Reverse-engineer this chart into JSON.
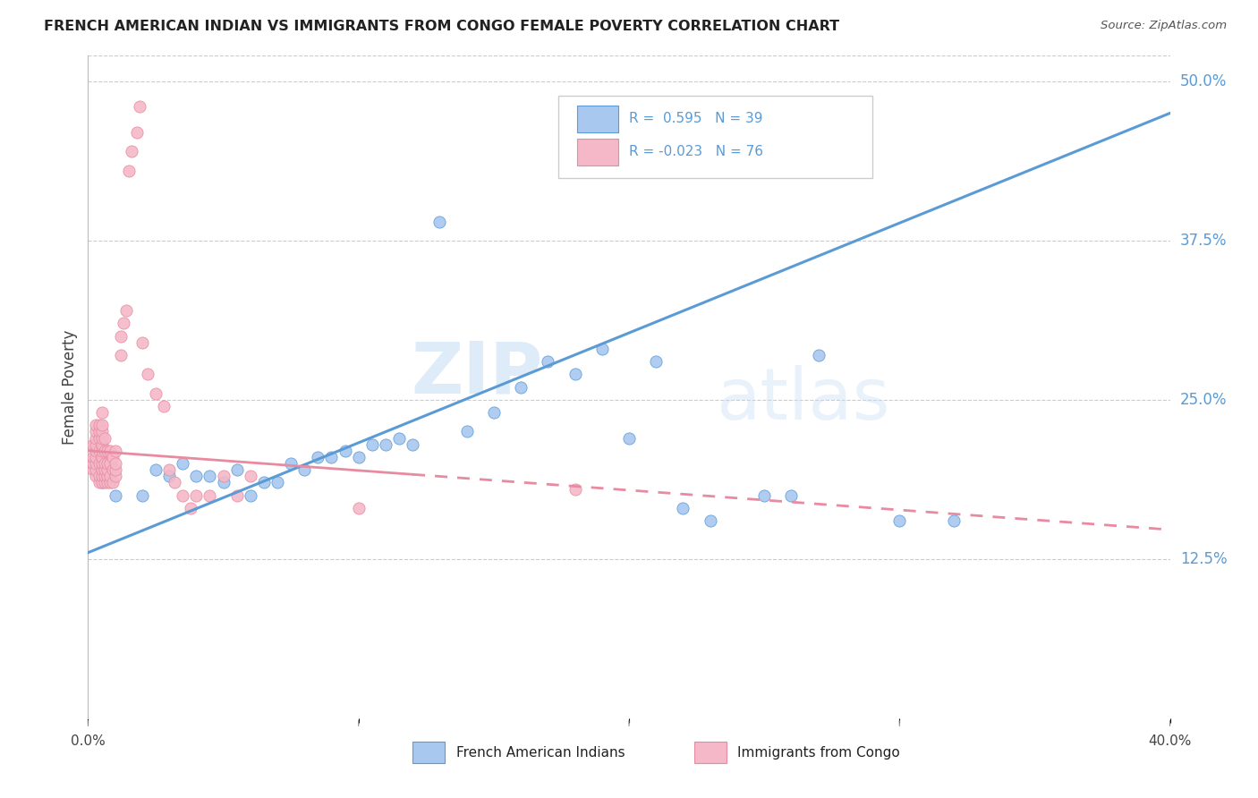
{
  "title": "FRENCH AMERICAN INDIAN VS IMMIGRANTS FROM CONGO FEMALE POVERTY CORRELATION CHART",
  "source": "Source: ZipAtlas.com",
  "ylabel": "Female Poverty",
  "yticks": [
    "12.5%",
    "25.0%",
    "37.5%",
    "50.0%"
  ],
  "ytick_vals": [
    0.125,
    0.25,
    0.375,
    0.5
  ],
  "xlim": [
    0.0,
    0.4
  ],
  "ylim": [
    0.0,
    0.52
  ],
  "legend_r1": "R =  0.595",
  "legend_n1": "N = 39",
  "legend_r2": "R = -0.023",
  "legend_n2": "N = 76",
  "color_blue": "#a8c8f0",
  "color_pink": "#f4b8c8",
  "line_blue": "#5b9bd5",
  "line_pink": "#e88aa0",
  "watermark_zip": "ZIP",
  "watermark_atlas": "atlas",
  "blue_scatter_x": [
    0.005,
    0.01,
    0.02,
    0.025,
    0.03,
    0.035,
    0.04,
    0.045,
    0.05,
    0.055,
    0.06,
    0.065,
    0.07,
    0.075,
    0.08,
    0.085,
    0.09,
    0.095,
    0.1,
    0.105,
    0.11,
    0.115,
    0.12,
    0.13,
    0.14,
    0.15,
    0.16,
    0.17,
    0.18,
    0.19,
    0.2,
    0.21,
    0.22,
    0.23,
    0.25,
    0.26,
    0.27,
    0.3,
    0.32
  ],
  "blue_scatter_y": [
    0.185,
    0.175,
    0.175,
    0.195,
    0.19,
    0.2,
    0.19,
    0.19,
    0.185,
    0.195,
    0.175,
    0.185,
    0.185,
    0.2,
    0.195,
    0.205,
    0.205,
    0.21,
    0.205,
    0.215,
    0.215,
    0.22,
    0.215,
    0.39,
    0.225,
    0.24,
    0.26,
    0.28,
    0.27,
    0.29,
    0.22,
    0.28,
    0.165,
    0.155,
    0.175,
    0.175,
    0.285,
    0.155,
    0.155
  ],
  "pink_scatter_x": [
    0.002,
    0.002,
    0.002,
    0.002,
    0.003,
    0.003,
    0.003,
    0.003,
    0.003,
    0.003,
    0.003,
    0.003,
    0.003,
    0.004,
    0.004,
    0.004,
    0.004,
    0.004,
    0.004,
    0.004,
    0.005,
    0.005,
    0.005,
    0.005,
    0.005,
    0.005,
    0.005,
    0.005,
    0.005,
    0.005,
    0.005,
    0.006,
    0.006,
    0.006,
    0.006,
    0.006,
    0.006,
    0.007,
    0.007,
    0.007,
    0.007,
    0.007,
    0.008,
    0.008,
    0.008,
    0.008,
    0.009,
    0.009,
    0.009,
    0.01,
    0.01,
    0.01,
    0.01,
    0.012,
    0.012,
    0.013,
    0.014,
    0.015,
    0.016,
    0.018,
    0.019,
    0.02,
    0.022,
    0.025,
    0.028,
    0.03,
    0.032,
    0.035,
    0.038,
    0.04,
    0.045,
    0.05,
    0.055,
    0.06,
    0.1,
    0.18
  ],
  "pink_scatter_y": [
    0.195,
    0.2,
    0.205,
    0.215,
    0.19,
    0.195,
    0.2,
    0.205,
    0.21,
    0.215,
    0.22,
    0.225,
    0.23,
    0.185,
    0.19,
    0.2,
    0.21,
    0.22,
    0.225,
    0.23,
    0.185,
    0.19,
    0.195,
    0.2,
    0.205,
    0.21,
    0.215,
    0.22,
    0.225,
    0.23,
    0.24,
    0.185,
    0.19,
    0.195,
    0.2,
    0.21,
    0.22,
    0.185,
    0.19,
    0.195,
    0.2,
    0.21,
    0.185,
    0.19,
    0.2,
    0.21,
    0.185,
    0.195,
    0.205,
    0.19,
    0.195,
    0.2,
    0.21,
    0.285,
    0.3,
    0.31,
    0.32,
    0.43,
    0.445,
    0.46,
    0.48,
    0.295,
    0.27,
    0.255,
    0.245,
    0.195,
    0.185,
    0.175,
    0.165,
    0.175,
    0.175,
    0.19,
    0.175,
    0.19,
    0.165,
    0.18
  ],
  "blue_line_x": [
    0.0,
    0.4
  ],
  "blue_line_y": [
    0.13,
    0.475
  ],
  "pink_line_x": [
    0.0,
    0.4
  ],
  "pink_line_y": [
    0.21,
    0.148
  ],
  "background_color": "#ffffff",
  "grid_color": "#cccccc"
}
